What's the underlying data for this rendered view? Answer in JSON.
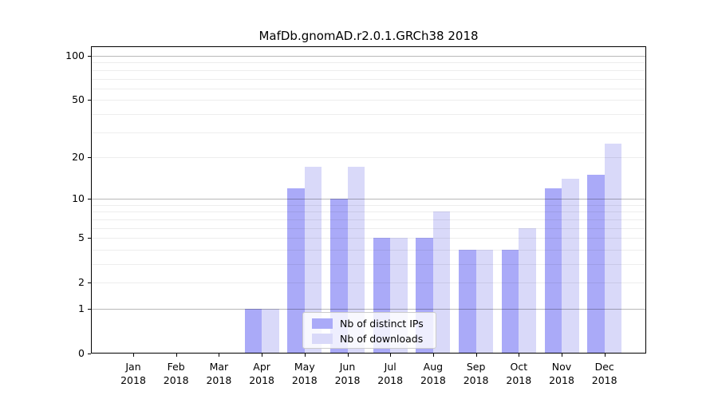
{
  "title": "MafDb.gnomAD.r2.0.1.GRCh38 2018",
  "legend": {
    "items": [
      {
        "label": "Nb of distinct IPs",
        "color": "#aaaaf8"
      },
      {
        "label": "Nb of downloads",
        "color": "#d9d9f9"
      }
    ]
  },
  "chart_data": {
    "type": "bar",
    "title": "MafDb.gnomAD.r2.0.1.GRCh38 2018",
    "y_scale": "log1p",
    "ylim": [
      0,
      116
    ],
    "grid": true,
    "legend_position": "lower center",
    "categories": [
      "Jan 2018",
      "Feb 2018",
      "Mar 2018",
      "Apr 2018",
      "May 2018",
      "Jun 2018",
      "Jul 2018",
      "Aug 2018",
      "Sep 2018",
      "Oct 2018",
      "Nov 2018",
      "Dec 2018"
    ],
    "series": [
      {
        "name": "Nb of distinct IPs",
        "color": "#aaaaf8",
        "values": [
          0,
          0,
          0,
          1,
          12,
          10,
          5,
          5,
          4,
          4,
          12,
          15
        ]
      },
      {
        "name": "Nb of downloads",
        "color": "#d9d9f9",
        "values": [
          0,
          0,
          0,
          1,
          17,
          17,
          5,
          8,
          4,
          6,
          14,
          25
        ]
      }
    ],
    "y_ticks": [
      0,
      1,
      2,
      5,
      10,
      20,
      50,
      100
    ],
    "y_major_gridlines": [
      1,
      10,
      100
    ],
    "y_minor_gridlines": [
      2,
      3,
      4,
      5,
      6,
      7,
      8,
      9,
      20,
      30,
      40,
      50,
      60,
      70,
      80,
      90
    ]
  }
}
